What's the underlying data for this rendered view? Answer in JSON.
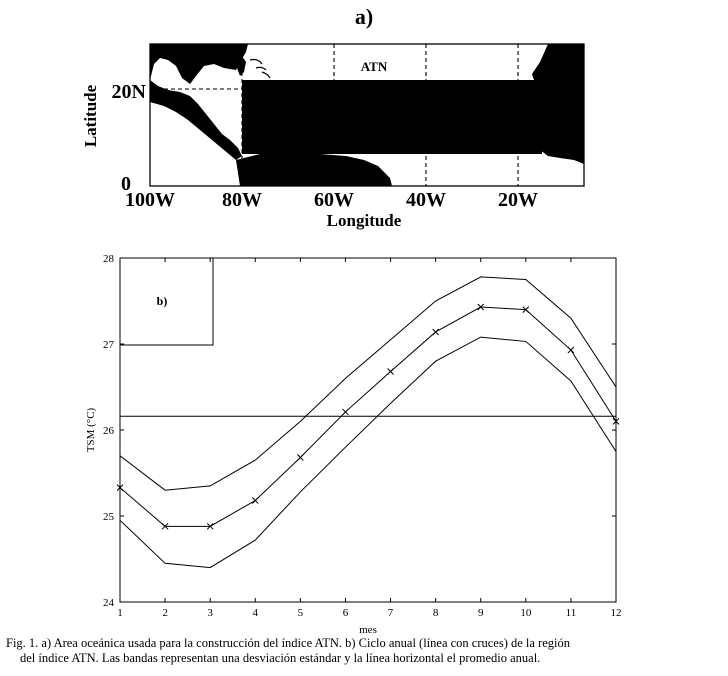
{
  "panel_a": {
    "title": "a)",
    "region_label": "ATN",
    "xlabel": "Longitude",
    "ylabel": "Latitude",
    "xticks": [
      "100W",
      "80W",
      "60W",
      "40W",
      "20W"
    ],
    "yticks": [
      "20N",
      "0"
    ]
  },
  "caption": {
    "line1": "Fig. 1. a) Area oceánica usada para la construcción del índice ATN. b) Ciclo anual (línea con cruces) de la región",
    "line2": "del índice ATN. Las bandas representan una desviación estándar y la línea horizontal el promedio anual."
  },
  "chart_data": {
    "type": "line",
    "panel_label": "b)",
    "xlabel": "mes",
    "ylabel": "TSM (°C)",
    "xlim": [
      1,
      12
    ],
    "ylim": [
      24,
      28
    ],
    "x": [
      1,
      2,
      3,
      4,
      5,
      6,
      7,
      8,
      9,
      10,
      11,
      12
    ],
    "xticks": [
      "1",
      "2",
      "3",
      "4",
      "5",
      "6",
      "7",
      "8",
      "9",
      "10",
      "11",
      "12"
    ],
    "yticks": [
      "24",
      "25",
      "26",
      "27",
      "28"
    ],
    "series": [
      {
        "role": "upper-band",
        "values": [
          25.7,
          25.3,
          25.35,
          25.65,
          26.1,
          26.6,
          27.05,
          27.5,
          27.78,
          27.75,
          27.3,
          26.5
        ]
      },
      {
        "role": "mean",
        "marker": "x",
        "values": [
          25.33,
          24.88,
          24.88,
          25.18,
          25.68,
          26.21,
          26.68,
          27.14,
          27.43,
          27.4,
          26.93,
          26.1
        ]
      },
      {
        "role": "lower-band",
        "values": [
          24.95,
          24.45,
          24.4,
          24.72,
          25.28,
          25.8,
          26.31,
          26.8,
          27.08,
          27.03,
          26.57,
          25.75
        ]
      }
    ],
    "annual_mean": 26.16,
    "grid": false
  }
}
